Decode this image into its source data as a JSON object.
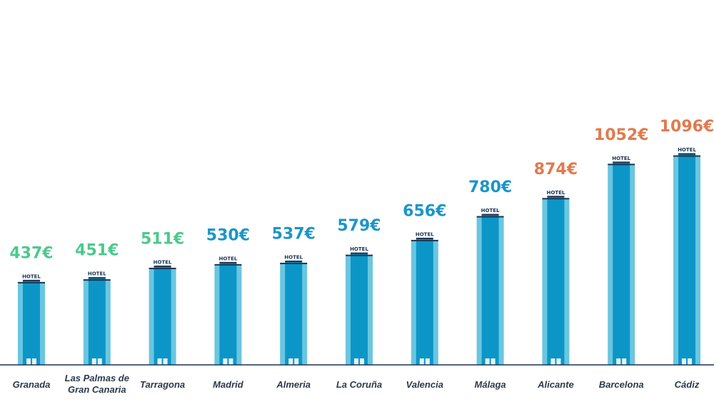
{
  "chart_data": {
    "type": "bar",
    "title": "",
    "xlabel": "",
    "ylabel": "",
    "ylim": [
      0,
      1096
    ],
    "grid": false,
    "legend": "none",
    "categories": [
      [
        "Granada"
      ],
      [
        "Las Palmas de",
        "Gran Canaria"
      ],
      [
        "Tarragona"
      ],
      [
        "Madrid"
      ],
      [
        "Almeria"
      ],
      [
        "La Coruña"
      ],
      [
        "Valencia"
      ],
      [
        "Málaga"
      ],
      [
        "Alicante"
      ],
      [
        "Barcelona"
      ],
      [
        "Cádiz"
      ]
    ],
    "values": [
      437,
      451,
      511,
      530,
      537,
      579,
      656,
      780,
      874,
      1052,
      1096
    ],
    "value_labels": [
      "437€",
      "451€",
      "511€",
      "530€",
      "537€",
      "579€",
      "656€",
      "780€",
      "874€",
      "1052€",
      "1096€"
    ],
    "label_colors": [
      "#4cc98c",
      "#4cc98c",
      "#4cc98c",
      "#1a95c8",
      "#1a95c8",
      "#1a95c8",
      "#1a95c8",
      "#1a95c8",
      "#e07a4f",
      "#e07a4f",
      "#e07a4f"
    ],
    "bar_sign": "HOTEL"
  },
  "colors": {
    "bar_dark": "#0c96c8",
    "bar_light": "#6ac6e0",
    "bar_cap": "#1c3550",
    "baseline": "#1c3550"
  }
}
